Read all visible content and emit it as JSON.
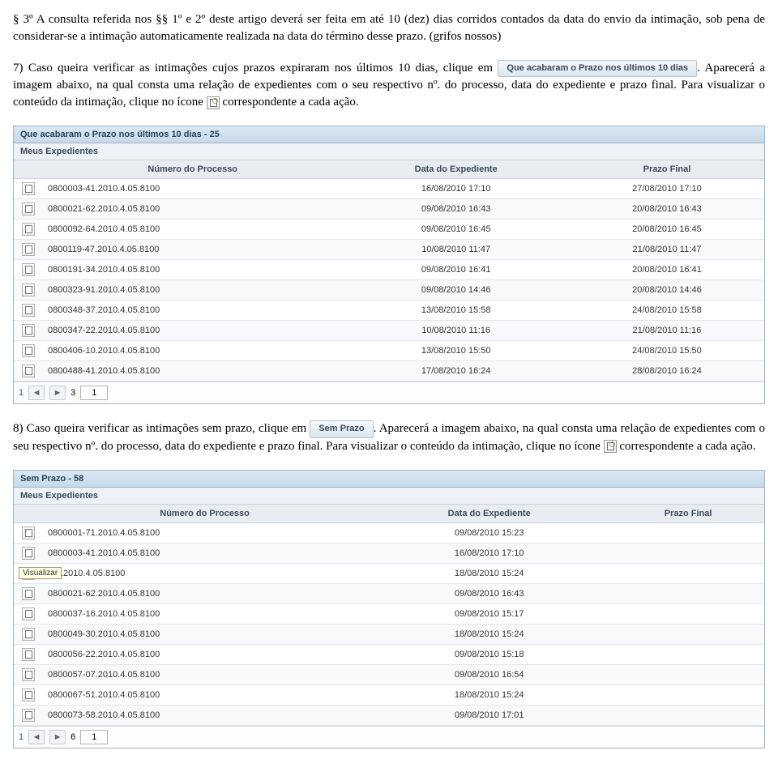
{
  "para1": "§ 3º  A consulta referida nos §§ 1º e 2º deste artigo deverá ser feita em até 10 (dez) dias corridos contados da data do envio da intimação, sob pena de considerar-se a intimação automaticamente realizada na data do término desse prazo. (grifos nossos)",
  "para2_a": "7) Caso queira verificar as intimações cujos prazos expiraram nos últimos 10 dias, clique em",
  "btn_prazo10": "Que acabaram o Prazo nos últimos 10 dias",
  "para2_b": ". Aparecerá a imagem abaixo, na qual consta uma relação de expedientes com o seu respectivo nº. do processo, data do expediente e prazo final. Para visualizar o conteúdo da intimação, clique no ícone",
  "para2_c": "correspondente a cada ação.",
  "para3_a": "8) Caso queira verificar as intimações sem prazo, clique em",
  "btn_semprazo": "Sem Prazo",
  "para3_b": ". Aparecerá a imagem abaixo, na qual consta uma relação de expedientes com o seu respectivo nº. do processo, data do expediente e prazo final. Para visualizar o conteúdo da intimação, clique no ícone",
  "para3_c": "correspondente a cada ação.",
  "table_style": {
    "header_bg": "#e9edf1",
    "border_color": "#c6d2de",
    "row_alt_bg": "#f7f9fb",
    "font_size": 11,
    "font_family": "Arial"
  },
  "table1": {
    "title": "Que acabaram o Prazo nos últimos 10 dias - 25",
    "section": "Meus Expedientes",
    "headers": [
      "",
      "Número do Processo",
      "Data do Expediente",
      "Prazo Final"
    ],
    "col_align": [
      "center",
      "left",
      "center",
      "center"
    ],
    "rows": [
      [
        "0800003-41.2010.4.05.8100",
        "16/08/2010 17:10",
        "27/08/2010 17:10"
      ],
      [
        "0800021-62.2010.4.05.8100",
        "09/08/2010 16:43",
        "20/08/2010 16:43"
      ],
      [
        "0800092-64.2010.4.05.8100",
        "09/08/2010 16:45",
        "20/08/2010 16:45"
      ],
      [
        "0800119-47.2010.4.05.8100",
        "10/08/2010 11:47",
        "21/08/2010 11:47"
      ],
      [
        "0800191-34.2010.4.05.8100",
        "09/08/2010 16:41",
        "20/08/2010 16:41"
      ],
      [
        "0800323-91.2010.4.05.8100",
        "09/08/2010 14:46",
        "20/08/2010 14:46"
      ],
      [
        "0800348-37.2010.4.05.8100",
        "13/08/2010 15:58",
        "24/08/2010 15:58"
      ],
      [
        "0800347-22.2010.4.05.8100",
        "10/08/2010 11:16",
        "21/08/2010 11:16"
      ],
      [
        "0800406-10.2010.4.05.8100",
        "13/08/2010 15:50",
        "24/08/2010 15:50"
      ],
      [
        "0800488-41.2010.4.05.8100",
        "17/08/2010 16:24",
        "28/08/2010 16:24"
      ]
    ],
    "pager": {
      "pages": [
        "1"
      ],
      "next_visible": true,
      "total_label": "3",
      "input_value": "1"
    }
  },
  "table2": {
    "title": "Sem Prazo - 58",
    "section": "Meus Expedientes",
    "headers": [
      "",
      "Número do Processo",
      "Data do Expediente",
      "Prazo Final"
    ],
    "rows": [
      [
        "0800001-71.2010.4.05.8100",
        "09/08/2010 15:23",
        ""
      ],
      [
        "0800003-41.2010.4.05.8100",
        "16/08/2010 17:10",
        ""
      ],
      [
        "-33.2010.4.05.8100",
        "18/08/2010 15:24",
        ""
      ],
      [
        "0800021-62.2010.4.05.8100",
        "09/08/2010 16:43",
        ""
      ],
      [
        "0800037-16.2010.4.05.8100",
        "09/08/2010 15:17",
        ""
      ],
      [
        "0800049-30.2010.4.05.8100",
        "18/08/2010 15:24",
        ""
      ],
      [
        "0800056-22.2010.4.05.8100",
        "09/08/2010 15:18",
        ""
      ],
      [
        "0800057-07.2010.4.05.8100",
        "09/08/2010 16:54",
        ""
      ],
      [
        "0800067-51.2010.4.05.8100",
        "18/08/2010 15:24",
        ""
      ],
      [
        "0800073-58.2010.4.05.8100",
        "09/08/2010 17:01",
        ""
      ]
    ],
    "tooltip": {
      "row_index": 2,
      "label": "Visualizar"
    },
    "pager": {
      "pages": [
        "1"
      ],
      "next_visible": true,
      "total_label": "6",
      "input_value": "1"
    }
  }
}
